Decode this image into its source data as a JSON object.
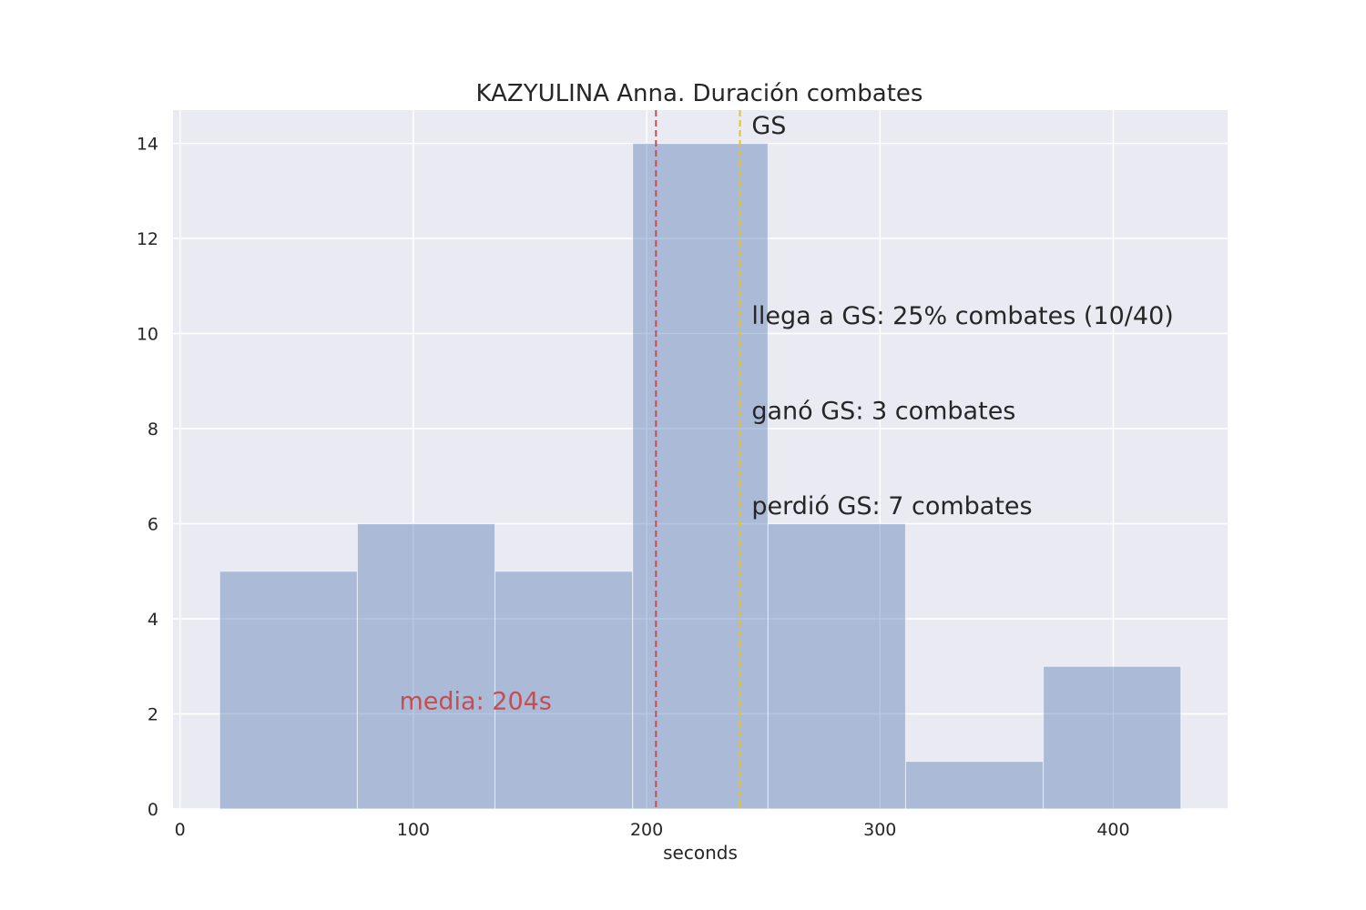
{
  "chart_data": {
    "type": "histogram",
    "title": "KAZYULINA Anna. Duración combates",
    "xlabel": "seconds",
    "ylabel": "",
    "xlim": [
      -3,
      449
    ],
    "ylim": [
      0,
      14.7
    ],
    "x_ticks": [
      0,
      100,
      200,
      300,
      400
    ],
    "y_ticks": [
      0,
      2,
      4,
      6,
      8,
      10,
      12,
      14
    ],
    "grid": true,
    "bins": [
      {
        "start": 17,
        "end": 76,
        "count": 5
      },
      {
        "start": 76,
        "end": 135,
        "count": 6
      },
      {
        "start": 135,
        "end": 194,
        "count": 5
      },
      {
        "start": 194,
        "end": 252,
        "count": 14
      },
      {
        "start": 252,
        "end": 311,
        "count": 6
      },
      {
        "start": 311,
        "end": 370,
        "count": 1
      },
      {
        "start": 370,
        "end": 429,
        "count": 3
      }
    ],
    "mean_line": {
      "x": 204,
      "label": "media: 204s",
      "label_x": 94,
      "label_y": 2.1,
      "color": "#c44e52"
    },
    "gs_line": {
      "x": 240,
      "label": "GS",
      "color": "#e6c229"
    },
    "annotations": [
      {
        "text": "GS",
        "x": 245,
        "y": 14.2
      },
      {
        "text": "llega a GS: 25% combates (10/40)",
        "x": 245,
        "y": 10.2
      },
      {
        "text": "ganó GS: 3 combates",
        "x": 245,
        "y": 8.2
      },
      {
        "text": "perdió GS: 7 combates",
        "x": 245,
        "y": 6.2
      }
    ],
    "colors": {
      "bar": "#4c72b0",
      "background": "#eaeaf2",
      "grid": "#ffffff"
    }
  }
}
